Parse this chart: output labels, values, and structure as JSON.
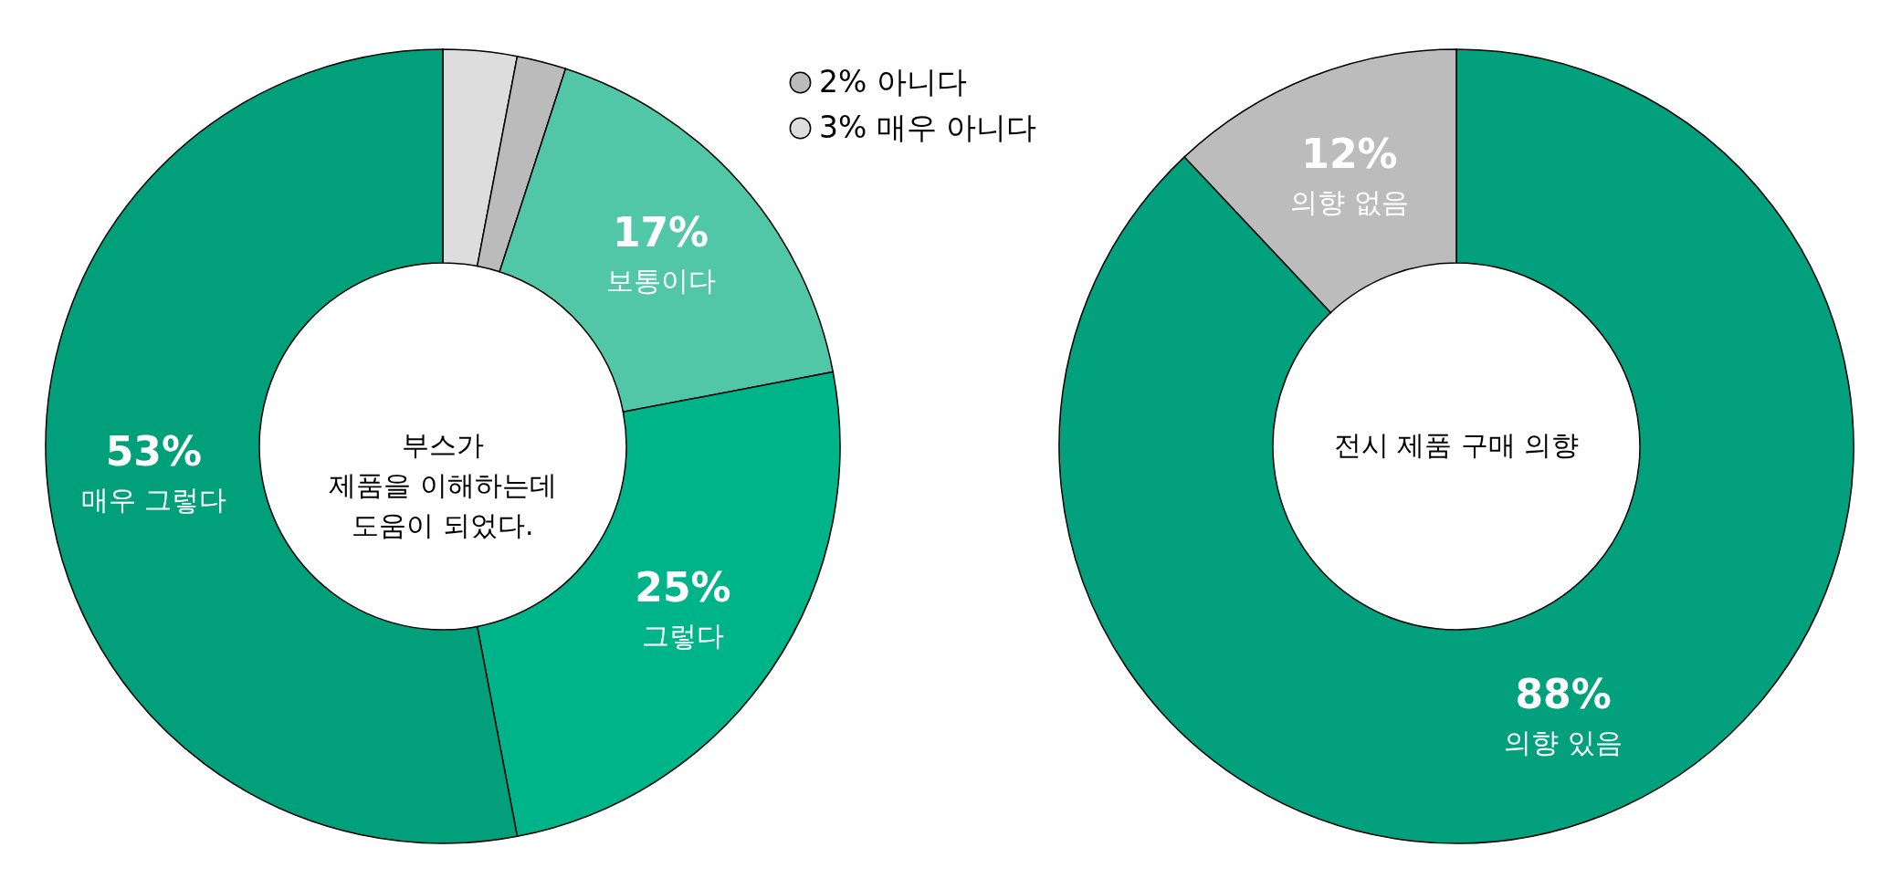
{
  "chart_data": [
    {
      "type": "donut",
      "title": "부스가\n제품을 이해하는데\n도움이 되었다.",
      "categories": [
        "매우 아니다",
        "아니다",
        "보통이다",
        "그렇다",
        "매우 그렇다"
      ],
      "values": [
        3,
        2,
        17,
        25,
        53
      ],
      "colors": [
        "#dddddd",
        "#bbbbbb",
        "#52c7a8",
        "#00b48a",
        "#029f7b"
      ],
      "value_labels": [
        "3%",
        "2%",
        "17%",
        "25%",
        "53%"
      ],
      "legend": "top right"
    },
    {
      "type": "donut",
      "title": "전시 제품 구매 의향",
      "categories": [
        "의향 있음",
        "의향 없음"
      ],
      "values": [
        88,
        12
      ],
      "colors": [
        "#02a07c",
        "#bcbcbc"
      ],
      "value_labels": [
        "88%",
        "12%"
      ]
    }
  ]
}
